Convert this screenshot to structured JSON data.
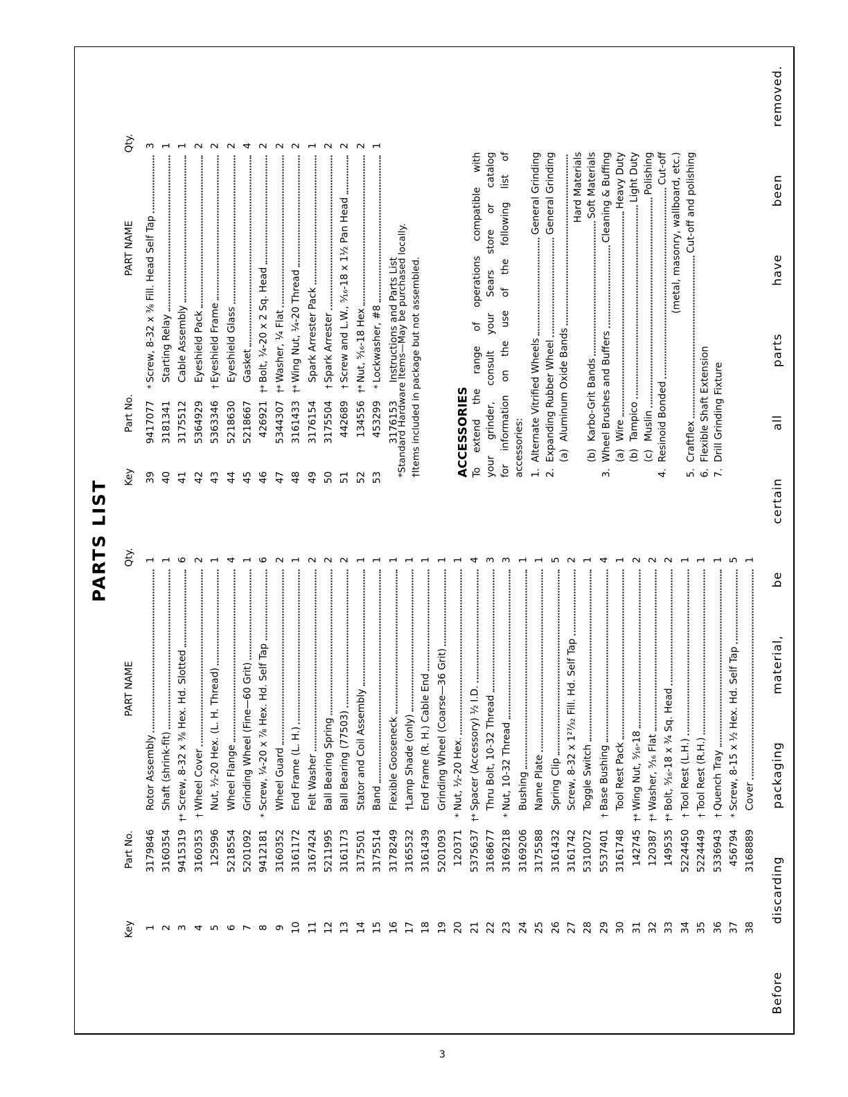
{
  "title": "PARTS LIST",
  "headers": {
    "key": "Key",
    "part_no": "Part No.",
    "part_name": "PART NAME",
    "qty": "Qty."
  },
  "left_parts": [
    {
      "key": "1",
      "part_no": "3179846",
      "mark": "",
      "name": "Rotor Assembly",
      "qty": "1"
    },
    {
      "key": "2",
      "part_no": "3160354",
      "mark": "",
      "name": "Shaft (shrink-fit)",
      "qty": "1"
    },
    {
      "key": "3",
      "part_no": "9415319",
      "mark": "†*",
      "name": "Screw, 8-32 x ⅜ Hex. Hd. Slotted",
      "qty": "6"
    },
    {
      "key": "4",
      "part_no": "3160353",
      "mark": "†",
      "name": "Wheel Cover",
      "qty": "2"
    },
    {
      "key": "5",
      "part_no": "125996",
      "mark": "",
      "name": "Nut, ½-20 Hex. (L. H. Thread)",
      "qty": "1"
    },
    {
      "key": "6",
      "part_no": "5218554",
      "mark": "",
      "name": "Wheel Flange",
      "qty": "4"
    },
    {
      "key": "7",
      "part_no": "5201092",
      "mark": "",
      "name": "Grinding Wheel (Fine—60 Grit)",
      "qty": "1"
    },
    {
      "key": "8",
      "part_no": "9412181",
      "mark": "*",
      "name": "Screw, ¼-20 x ⅞ Hex. Hd. Self Tap",
      "qty": "6"
    },
    {
      "key": "9",
      "part_no": "3160352",
      "mark": "",
      "name": "Wheel Guard",
      "qty": "2"
    },
    {
      "key": "10",
      "part_no": "3161172",
      "mark": "",
      "name": "End Frame (L. H.)",
      "qty": "1"
    },
    {
      "key": "11",
      "part_no": "3167424",
      "mark": "",
      "name": "Felt Washer",
      "qty": "2"
    },
    {
      "key": "12",
      "part_no": "5211995",
      "mark": "",
      "name": "Ball Bearing Spring",
      "qty": "2"
    },
    {
      "key": "13",
      "part_no": "3161173",
      "mark": "",
      "name": "Ball Bearing (77503)",
      "qty": "2"
    },
    {
      "key": "14",
      "part_no": "3175501",
      "mark": "",
      "name": "Stator and Coil Assembly",
      "qty": "1"
    },
    {
      "key": "15",
      "part_no": "3175514",
      "mark": "",
      "name": "Band",
      "qty": "1"
    },
    {
      "key": "16",
      "part_no": "3178249",
      "mark": "",
      "name": "Flexible Gooseneck",
      "qty": "1"
    },
    {
      "key": "17",
      "part_no": "3165532",
      "mark": "",
      "name": "†Lamp Shade (only)",
      "qty": "1"
    },
    {
      "key": "18",
      "part_no": "3161439",
      "mark": "",
      "name": "End Frame (R. H.) Cable End",
      "qty": "1"
    },
    {
      "key": "19",
      "part_no": "5201093",
      "mark": "",
      "name": "Grinding Wheel (Coarse—36 Grit)",
      "qty": "1"
    },
    {
      "key": "20",
      "part_no": "120371",
      "mark": "*",
      "name": "Nut, ½-20 Hex.",
      "qty": "1"
    },
    {
      "key": "21",
      "part_no": "5375637",
      "mark": "†*",
      "name": "Spacer (Accessory) ½ I.D.",
      "qty": "4"
    },
    {
      "key": "22",
      "part_no": "3168677",
      "mark": "",
      "name": "Thru Bolt, 10-32 Thread",
      "qty": "3"
    },
    {
      "key": "23",
      "part_no": "3169218",
      "mark": "*",
      "name": "Nut, 10-32 Thread",
      "qty": "3"
    },
    {
      "key": "24",
      "part_no": "3169206",
      "mark": "",
      "name": "Bushing",
      "qty": "1"
    },
    {
      "key": "25",
      "part_no": "3175588",
      "mark": "",
      "name": "Name Plate",
      "qty": "1"
    },
    {
      "key": "26",
      "part_no": "3161432",
      "mark": "",
      "name": "Spring Clip",
      "qty": "5"
    },
    {
      "key": "27",
      "part_no": "3161742",
      "mark": "",
      "name": "Screw, 8-32 x 1²⁷⁄₃₂ Fill. Hd. Self Tap",
      "qty": "2"
    },
    {
      "key": "28",
      "part_no": "5310072",
      "mark": "",
      "name": "Toggle Switch",
      "qty": "1"
    },
    {
      "key": "29",
      "part_no": "5537401",
      "mark": "†",
      "name": "Base Bushing",
      "qty": "4"
    },
    {
      "key": "30",
      "part_no": "3161748",
      "mark": "",
      "name": "Tool Rest Pack",
      "qty": "1"
    },
    {
      "key": "31",
      "part_no": "142745",
      "mark": "†*",
      "name": "Wing Nut, ⁵⁄₁₆-18",
      "qty": "2"
    },
    {
      "key": "32",
      "part_no": "120387",
      "mark": "†*",
      "name": "Washer, ⁵⁄₁₆ Flat",
      "qty": "2"
    },
    {
      "key": "33",
      "part_no": "149535",
      "mark": "†*",
      "name": "Bolt, ⁵⁄₁₆-18 x ¾ Sq. Head",
      "qty": "2"
    },
    {
      "key": "34",
      "part_no": "5224450",
      "mark": "†",
      "name": "Tool Rest (L.H.)",
      "qty": "1"
    },
    {
      "key": "35",
      "part_no": "5224449",
      "mark": "†",
      "name": "Tool Rest (R.H.)",
      "qty": "1"
    },
    {
      "key": "36",
      "part_no": "5336943",
      "mark": "†",
      "name": "Quench Tray",
      "qty": "1"
    },
    {
      "key": "37",
      "part_no": "456794",
      "mark": "*",
      "name": "Screw, 8-15 x ½ Hex. Hd. Self Tap",
      "qty": "5"
    },
    {
      "key": "38",
      "part_no": "3168889",
      "mark": "",
      "name": "Cover",
      "qty": "1"
    }
  ],
  "right_parts": [
    {
      "key": "39",
      "part_no": "9417077",
      "mark": "*",
      "name": "Screw, 8-32 x ⅜ Fill. Head Self Tap",
      "qty": "3"
    },
    {
      "key": "40",
      "part_no": "3181341",
      "mark": "",
      "name": "Starting Relay",
      "qty": "1"
    },
    {
      "key": "41",
      "part_no": "3175512",
      "mark": "",
      "name": "Cable Assembly",
      "qty": "1"
    },
    {
      "key": "42",
      "part_no": "5364929",
      "mark": "",
      "name": "Eyeshield Pack",
      "qty": "2"
    },
    {
      "key": "43",
      "part_no": "5363346",
      "mark": "†",
      "name": "Eyeshield Frame",
      "qty": "2"
    },
    {
      "key": "44",
      "part_no": "5218630",
      "mark": "",
      "name": "Eyeshield Glass",
      "qty": "2"
    },
    {
      "key": "45",
      "part_no": "5218667",
      "mark": "",
      "name": "Gasket",
      "qty": "4"
    },
    {
      "key": "46",
      "part_no": "426921",
      "mark": "†*",
      "name": "Bolt, ¼-20 x 2 Sq. Head",
      "qty": "2"
    },
    {
      "key": "47",
      "part_no": "5344307",
      "mark": "†*",
      "name": "Washer, ¼ Flat",
      "qty": "2"
    },
    {
      "key": "48",
      "part_no": "3161433",
      "mark": "†*",
      "name": "Wing Nut, ¼-20 Thread",
      "qty": "2"
    },
    {
      "key": "49",
      "part_no": "3176154",
      "mark": "",
      "name": "Spark Arrester Pack",
      "qty": "1"
    },
    {
      "key": "50",
      "part_no": "3175504",
      "mark": "†",
      "name": "Spark Arrester",
      "qty": "2"
    },
    {
      "key": "51",
      "part_no": "442689",
      "mark": "†",
      "name": "Screw and L.W., ⁵⁄₁₆-18 x 1½ Pan Head",
      "qty": "2"
    },
    {
      "key": "52",
      "part_no": "134556",
      "mark": "†*",
      "name": "Nut, ⁵⁄₁₆-18 Hex",
      "qty": "2"
    },
    {
      "key": "53",
      "part_no": "453299",
      "mark": "*",
      "name": "Lockwasher, #8",
      "qty": "1"
    },
    {
      "key": "",
      "part_no": "3176153",
      "mark": "",
      "name": "Instructions and Parts List",
      "qty": ""
    }
  ],
  "footnotes": [
    "*Standard Hardware Items—May be purchased locally.",
    "†Items included in package but not assembled."
  ],
  "accessories": {
    "title": "ACCESSORIES",
    "intro_lines": [
      "To extend the range of operations compatible with",
      "your grinder, consult your Sears store or catalog",
      "for information on the use of the following list of",
      "accessories:"
    ],
    "lines": [
      {
        "num": "1.",
        "sub": "",
        "label": "Alternate Vitrified Wheels",
        "desc": "General Grinding",
        "dots": true
      },
      {
        "num": "2.",
        "sub": "",
        "label": "Expanding Rubber Wheel",
        "desc": "General Grinding",
        "dots": true
      },
      {
        "num": "",
        "sub": "(a)",
        "label": "Aluminum Oxide Bands",
        "desc": "",
        "dots": true
      },
      {
        "num": "",
        "sub": "",
        "label": "",
        "desc": "Hard Materials",
        "dots": false
      },
      {
        "num": "",
        "sub": "(b)",
        "label": "Karbo-Grit Bands",
        "desc": "Soft Materials",
        "dots": true
      },
      {
        "num": "3.",
        "sub": "",
        "label": "Wheel Brushes and Buffers",
        "desc": "Cleaning & Buffing",
        "dots": true
      },
      {
        "num": "",
        "sub": "(a)",
        "label": "Wire",
        "desc": "Heavy Duty",
        "dots": true
      },
      {
        "num": "",
        "sub": "(b)",
        "label": "Tampico",
        "desc": "Light Duty",
        "dots": true
      },
      {
        "num": "",
        "sub": "(c)",
        "label": "Muslin",
        "desc": "Polishing",
        "dots": true
      },
      {
        "num": "4.",
        "sub": "",
        "label": "Resinoid Bonded",
        "desc": "Cut-off",
        "dots": true
      },
      {
        "num": "",
        "sub": "",
        "label": "",
        "desc": "(metal, masonry, wallboard, etc.)",
        "dots": false
      },
      {
        "num": "5.",
        "sub": "",
        "label": "Craftflex",
        "desc": "Cut-off and polishing",
        "dots": true
      },
      {
        "num": "6.",
        "sub": "",
        "label": "Flexible Shaft Extension",
        "desc": "",
        "dots": false
      },
      {
        "num": "7.",
        "sub": "",
        "label": "Drill Grinding Fixture",
        "desc": "",
        "dots": false
      }
    ]
  },
  "bottom_notice": "Before discarding packaging material, be certain all parts have been removed.",
  "page_number": "3"
}
